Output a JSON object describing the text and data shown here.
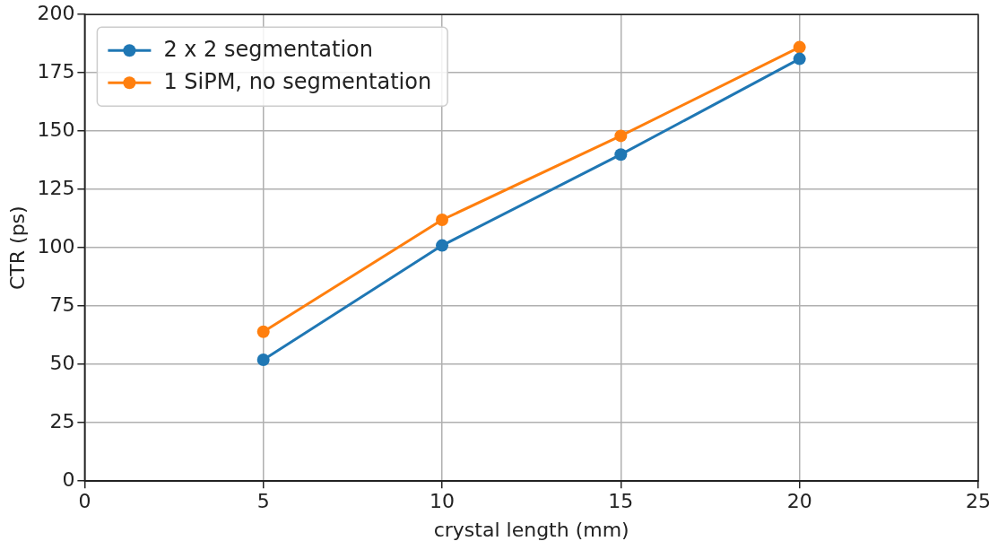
{
  "chart_data": {
    "type": "line",
    "xlabel": "crystal length (mm)",
    "ylabel": "CTR (ps)",
    "x": [
      5,
      10,
      15,
      20
    ],
    "series": [
      {
        "name": "2 x 2 segmentation",
        "color": "#1f77b4",
        "values": [
          52,
          101,
          140,
          181
        ]
      },
      {
        "name": "1 SiPM, no segmentation",
        "color": "#ff7f0e",
        "values": [
          64,
          112,
          148,
          186
        ]
      }
    ],
    "xlim": [
      0,
      25
    ],
    "xticks": [
      0,
      5,
      10,
      15,
      20,
      25
    ],
    "ylim": [
      0,
      200
    ],
    "yticks": [
      0,
      25,
      50,
      75,
      100,
      125,
      150,
      175,
      200
    ],
    "grid": true,
    "legend": "top left",
    "marker": "circle",
    "line_style": "solid"
  }
}
